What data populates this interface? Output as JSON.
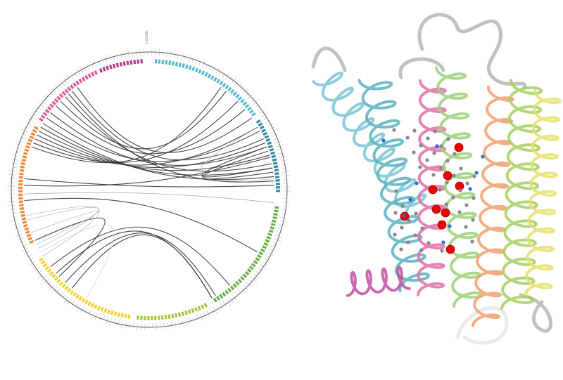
{
  "diagram": {
    "label": "LIGAND"
  }
}
